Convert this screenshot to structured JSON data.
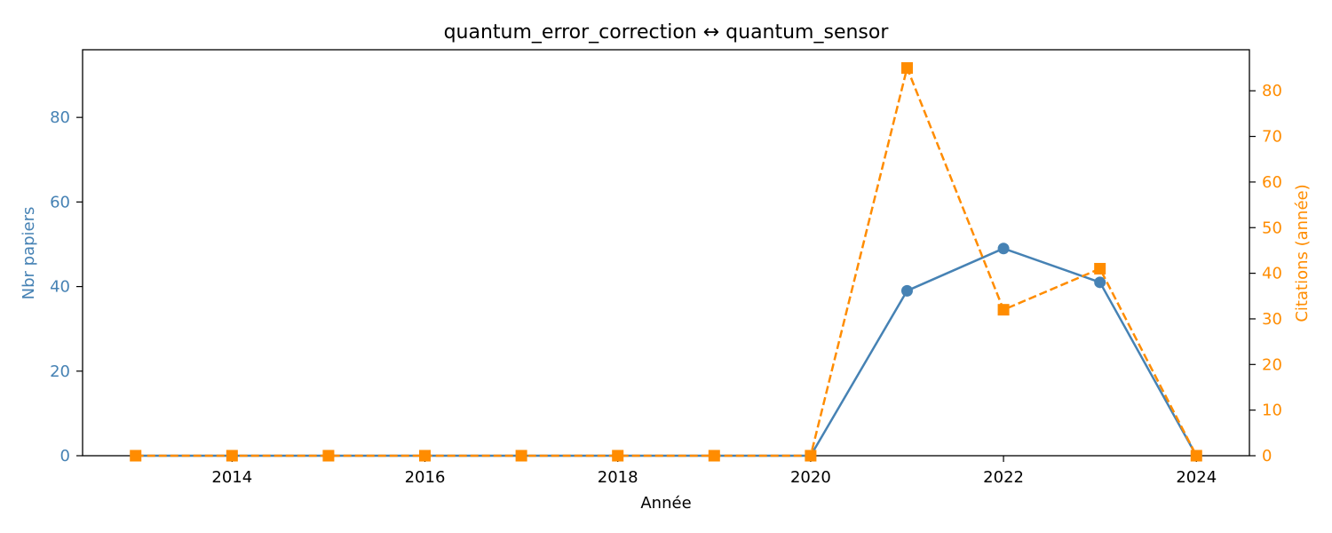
{
  "chart_data": {
    "type": "line",
    "title": "quantum_error_correction  ↔  quantum_sensor",
    "xlabel": "Année",
    "ylabel_left": "Nbr papiers",
    "ylabel_right": "Citations (année)",
    "x": [
      2013,
      2014,
      2015,
      2016,
      2017,
      2018,
      2019,
      2020,
      2021,
      2022,
      2023,
      2024
    ],
    "xlim": [
      2012.45,
      2024.55
    ],
    "xticks": [
      2014,
      2016,
      2018,
      2020,
      2022,
      2024
    ],
    "ylim_left": [
      0,
      96
    ],
    "yticks_left": [
      0,
      20,
      40,
      60,
      80
    ],
    "ylim_right": [
      0,
      89
    ],
    "yticks_right": [
      0,
      10,
      20,
      30,
      40,
      50,
      60,
      70,
      80
    ],
    "grid": false,
    "series": [
      {
        "axis": "left",
        "color": "#4682b4",
        "line_style": "solid",
        "marker": "circle",
        "values": [
          0,
          0,
          0,
          0,
          0,
          0,
          0,
          0,
          39,
          49,
          41,
          0
        ]
      },
      {
        "axis": "right",
        "color": "#ff8c00",
        "line_style": "dashed",
        "marker": "square",
        "values": [
          0,
          0,
          0,
          0,
          0,
          0,
          0,
          0,
          85,
          32,
          41,
          0
        ]
      }
    ]
  }
}
